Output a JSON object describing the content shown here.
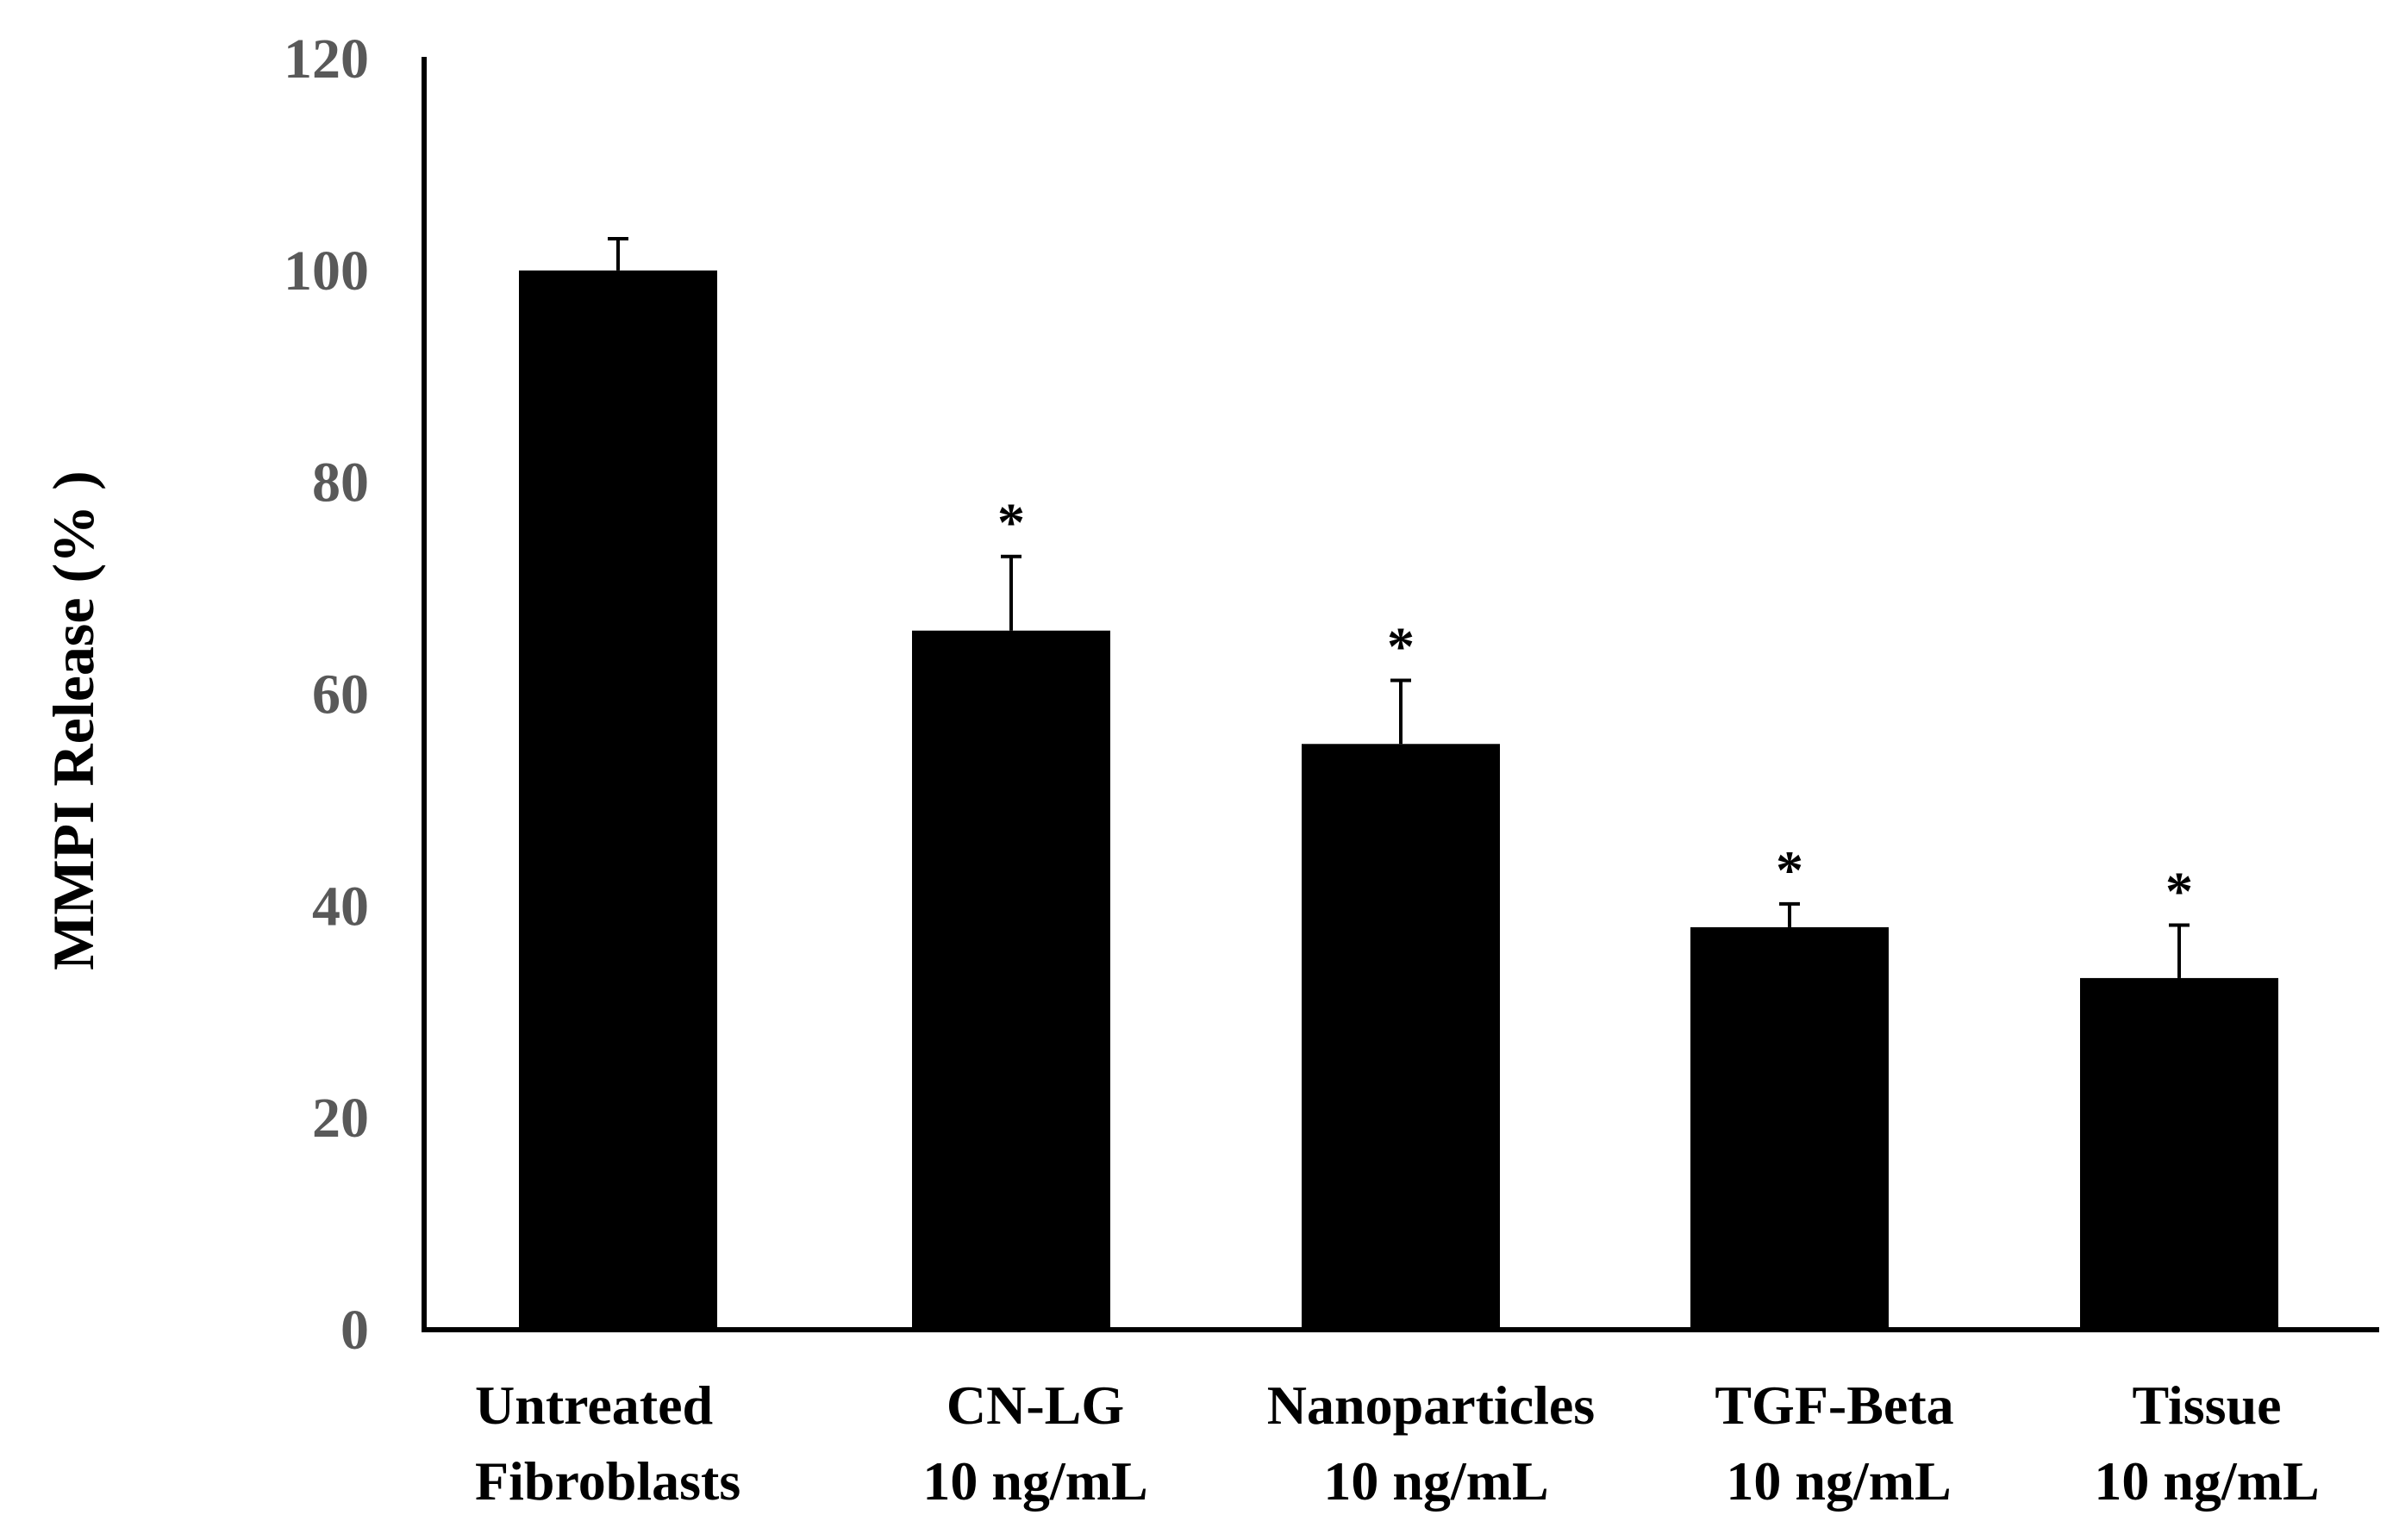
{
  "chart_data": {
    "type": "bar",
    "title": "",
    "xlabel": "",
    "ylabel": "MMPI Release (% )",
    "ylim": [
      0,
      120
    ],
    "yticks": [
      "0",
      "20",
      "40",
      "60",
      "80",
      "100",
      "120"
    ],
    "grid": false,
    "legend": "none",
    "bar_color": "#000000",
    "axis_color": "#000000",
    "tick_label_color": "#595959",
    "categories": [
      {
        "line1": "Untreated",
        "line2": "Fibroblasts"
      },
      {
        "line1": "CN-LG",
        "line2": "10 ng/mL"
      },
      {
        "line1": "Nanoparticles",
        "line2": "10 ng/mL"
      },
      {
        "line1": "TGF-Beta",
        "line2": "10 ng/mL"
      },
      {
        "line1": "Tissue",
        "line2": "10 ng/mL"
      }
    ],
    "values": [
      100,
      66,
      55.3,
      38,
      33.2
    ],
    "errors": [
      3,
      7,
      6,
      2.2,
      5
    ],
    "significance": [
      "",
      "*",
      "*",
      "*",
      "*"
    ]
  }
}
